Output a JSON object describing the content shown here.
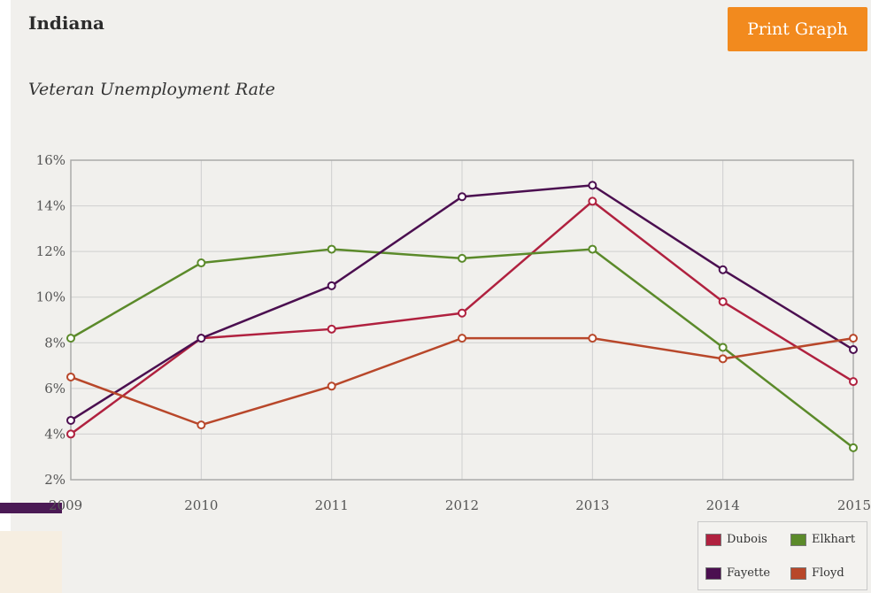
{
  "header": {
    "state": "Indiana",
    "print_label": "Print Graph"
  },
  "chart_data": {
    "type": "line",
    "title": "Veteran Unemployment Rate",
    "xlabel": "",
    "ylabel": "",
    "categories": [
      "2009",
      "2010",
      "2011",
      "2012",
      "2013",
      "2014",
      "2015"
    ],
    "ylim": [
      2,
      16
    ],
    "y_ticks": [
      "2%",
      "4%",
      "6%",
      "8%",
      "10%",
      "12%",
      "14%",
      "16%"
    ],
    "grid": true,
    "legend_position": "bottom-right",
    "series": [
      {
        "name": "Dubois",
        "color": "#b0213f",
        "values": [
          4.0,
          8.2,
          8.6,
          9.3,
          14.2,
          9.8,
          6.3
        ]
      },
      {
        "name": "Elkhart",
        "color": "#5b8a2a",
        "values": [
          8.2,
          11.5,
          12.1,
          11.7,
          12.1,
          7.8,
          3.4
        ]
      },
      {
        "name": "Fayette",
        "color": "#4b0f50",
        "values": [
          4.6,
          8.2,
          10.5,
          14.4,
          14.9,
          11.2,
          7.7
        ]
      },
      {
        "name": "Floyd",
        "color": "#b8472a",
        "values": [
          6.5,
          4.4,
          6.1,
          8.2,
          8.2,
          7.3,
          8.2
        ]
      }
    ]
  },
  "colors": {
    "button": "#f28a1e",
    "background": "#f1f0ed",
    "grid": "#cfcfcf",
    "axis": "#aaaaaa"
  }
}
